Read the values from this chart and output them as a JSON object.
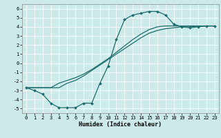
{
  "title": "",
  "xlabel": "Humidex (Indice chaleur)",
  "xlim": [
    -0.5,
    23.5
  ],
  "ylim": [
    -5.5,
    6.5
  ],
  "xticks": [
    0,
    1,
    2,
    3,
    4,
    5,
    6,
    7,
    8,
    9,
    10,
    11,
    12,
    13,
    14,
    15,
    16,
    17,
    18,
    19,
    20,
    21,
    22,
    23
  ],
  "yticks": [
    -5,
    -4,
    -3,
    -2,
    -1,
    0,
    1,
    2,
    3,
    4,
    5,
    6
  ],
  "bg_color": "#cceaea",
  "line_color": "#1a6b6b",
  "grid_color": "#ffffff",
  "line1_x": [
    0,
    1,
    2,
    3,
    4,
    5,
    6,
    7,
    8,
    9,
    10,
    11,
    12,
    13,
    14,
    15,
    16,
    17,
    18,
    19,
    20,
    21,
    22,
    23
  ],
  "line1_y": [
    -2.7,
    -3.0,
    -3.4,
    -4.4,
    -4.9,
    -4.9,
    -4.9,
    -4.4,
    -4.4,
    -2.2,
    -0.3,
    2.6,
    4.8,
    5.3,
    5.5,
    5.7,
    5.7,
    5.3,
    4.3,
    4.0,
    3.9,
    4.0,
    4.1,
    4.1
  ],
  "line2_x": [
    0,
    1,
    2,
    3,
    4,
    5,
    6,
    7,
    8,
    9,
    10,
    11,
    12,
    13,
    14,
    15,
    16,
    17,
    18,
    19,
    20,
    21,
    22,
    23
  ],
  "line2_y": [
    -2.7,
    -2.7,
    -2.7,
    -2.7,
    -2.7,
    -2.2,
    -1.9,
    -1.4,
    -0.8,
    -0.2,
    0.4,
    1.0,
    1.6,
    2.2,
    2.8,
    3.3,
    3.6,
    3.8,
    3.9,
    4.0,
    4.0,
    4.1,
    4.1,
    4.1
  ],
  "line3_x": [
    0,
    1,
    2,
    3,
    4,
    5,
    6,
    7,
    8,
    9,
    10,
    11,
    12,
    13,
    14,
    15,
    16,
    17,
    18,
    19,
    20,
    21,
    22,
    23
  ],
  "line3_y": [
    -2.7,
    -2.7,
    -2.7,
    -2.7,
    -2.2,
    -1.9,
    -1.6,
    -1.2,
    -0.7,
    -0.1,
    0.5,
    1.2,
    1.9,
    2.6,
    3.2,
    3.7,
    4.0,
    4.1,
    4.1,
    4.1,
    4.1,
    4.1,
    4.1,
    4.1
  ],
  "tick_fontsize": 5,
  "xlabel_fontsize": 6,
  "linewidth": 0.9,
  "markersize": 2.0
}
